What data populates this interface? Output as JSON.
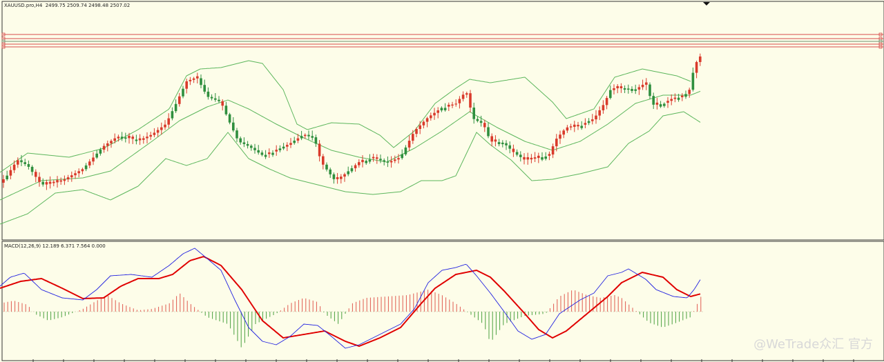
{
  "main_header": "XAUUSD.pro,H4  2499.75 2509.74 2498.48 2507.02",
  "macd_header": "MACD(12,26,9) 12.189 6.371 7.564 0.000",
  "watermark": "@WeTrade众汇 官方",
  "colors": {
    "background": "#fdfde9",
    "bull": "#d93a2b",
    "bear": "#2f8f3e",
    "bands": "#5cb65c",
    "hline_red": "#d84a4a",
    "hline_green": "#6f8f6f",
    "macd_line": "#2020e0",
    "signal_line": "#e00000",
    "hist_pos": "#e05a50",
    "hist_neg": "#4aa040"
  },
  "chart_data": [
    {
      "type": "candlestick",
      "symbol": "XAUUSD.pro",
      "timeframe": "H4",
      "ohlc_last": {
        "open": 2499.75,
        "high": 2509.74,
        "low": 2498.48,
        "close": 2507.02
      },
      "price_profile": [
        [
          0,
          265
        ],
        [
          10,
          255
        ],
        [
          25,
          232
        ],
        [
          40,
          240
        ],
        [
          60,
          268
        ],
        [
          90,
          262
        ],
        [
          120,
          245
        ],
        [
          150,
          212
        ],
        [
          170,
          198
        ],
        [
          200,
          204
        ],
        [
          220,
          195
        ],
        [
          240,
          180
        ],
        [
          255,
          150
        ],
        [
          270,
          118
        ],
        [
          285,
          112
        ],
        [
          300,
          140
        ],
        [
          320,
          148
        ],
        [
          330,
          172
        ],
        [
          345,
          205
        ],
        [
          360,
          212
        ],
        [
          380,
          225
        ],
        [
          400,
          218
        ],
        [
          420,
          208
        ],
        [
          440,
          195
        ],
        [
          455,
          200
        ],
        [
          465,
          235
        ],
        [
          485,
          262
        ],
        [
          500,
          252
        ],
        [
          520,
          235
        ],
        [
          540,
          228
        ],
        [
          560,
          236
        ],
        [
          580,
          228
        ],
        [
          600,
          190
        ],
        [
          620,
          170
        ],
        [
          640,
          156
        ],
        [
          660,
          150
        ],
        [
          675,
          132
        ],
        [
          685,
          172
        ],
        [
          700,
          180
        ],
        [
          710,
          205
        ],
        [
          730,
          208
        ],
        [
          745,
          222
        ],
        [
          760,
          232
        ],
        [
          780,
          228
        ],
        [
          795,
          225
        ],
        [
          805,
          202
        ],
        [
          820,
          185
        ],
        [
          840,
          182
        ],
        [
          860,
          172
        ],
        [
          875,
          150
        ],
        [
          885,
          128
        ],
        [
          900,
          128
        ],
        [
          920,
          130
        ],
        [
          935,
          120
        ],
        [
          945,
          152
        ],
        [
          960,
          150
        ],
        [
          975,
          142
        ],
        [
          990,
          140
        ],
        [
          1000,
          128
        ],
        [
          1005,
          95
        ],
        [
          1010,
          88
        ],
        [
          1015,
          80
        ]
      ],
      "bands_upper": [
        [
          0,
          250
        ],
        [
          40,
          222
        ],
        [
          100,
          228
        ],
        [
          150,
          215
        ],
        [
          200,
          188
        ],
        [
          245,
          158
        ],
        [
          270,
          110
        ],
        [
          290,
          100
        ],
        [
          320,
          98
        ],
        [
          360,
          88
        ],
        [
          380,
          92
        ],
        [
          410,
          130
        ],
        [
          430,
          180
        ],
        [
          445,
          188
        ],
        [
          480,
          178
        ],
        [
          520,
          180
        ],
        [
          550,
          196
        ],
        [
          570,
          214
        ],
        [
          600,
          190
        ],
        [
          630,
          150
        ],
        [
          660,
          128
        ],
        [
          680,
          115
        ],
        [
          710,
          120
        ],
        [
          760,
          112
        ],
        [
          800,
          148
        ],
        [
          820,
          172
        ],
        [
          860,
          158
        ],
        [
          890,
          112
        ],
        [
          930,
          100
        ],
        [
          980,
          110
        ],
        [
          1000,
          118
        ]
      ],
      "bands_middle": [
        [
          0,
          290
        ],
        [
          60,
          262
        ],
        [
          120,
          258
        ],
        [
          160,
          248
        ],
        [
          220,
          205
        ],
        [
          260,
          175
        ],
        [
          300,
          155
        ],
        [
          330,
          145
        ],
        [
          360,
          158
        ],
        [
          400,
          180
        ],
        [
          440,
          200
        ],
        [
          480,
          218
        ],
        [
          520,
          228
        ],
        [
          560,
          235
        ],
        [
          600,
          215
        ],
        [
          640,
          190
        ],
        [
          680,
          162
        ],
        [
          720,
          185
        ],
        [
          760,
          205
        ],
        [
          800,
          218
        ],
        [
          840,
          205
        ],
        [
          880,
          180
        ],
        [
          920,
          150
        ],
        [
          960,
          138
        ],
        [
          1000,
          138
        ],
        [
          1015,
          132
        ]
      ],
      "bands_lower": [
        [
          0,
          325
        ],
        [
          40,
          310
        ],
        [
          80,
          280
        ],
        [
          120,
          275
        ],
        [
          160,
          290
        ],
        [
          200,
          270
        ],
        [
          240,
          230
        ],
        [
          270,
          240
        ],
        [
          300,
          230
        ],
        [
          330,
          192
        ],
        [
          360,
          230
        ],
        [
          390,
          245
        ],
        [
          420,
          258
        ],
        [
          460,
          268
        ],
        [
          500,
          278
        ],
        [
          540,
          282
        ],
        [
          580,
          278
        ],
        [
          610,
          262
        ],
        [
          640,
          262
        ],
        [
          660,
          255
        ],
        [
          690,
          192
        ],
        [
          710,
          210
        ],
        [
          740,
          232
        ],
        [
          770,
          262
        ],
        [
          800,
          260
        ],
        [
          840,
          252
        ],
        [
          880,
          242
        ],
        [
          910,
          208
        ],
        [
          940,
          190
        ],
        [
          960,
          168
        ],
        [
          990,
          162
        ],
        [
          1015,
          178
        ]
      ],
      "horizontal_levels": [
        {
          "y_frac": 0.0,
          "color": "red"
        },
        {
          "y_frac": 0.12,
          "color": "red"
        },
        {
          "y_frac": 0.2,
          "color": "green"
        },
        {
          "y_frac": 0.28,
          "color": "red"
        },
        {
          "y_frac": 0.36,
          "color": "red"
        }
      ]
    },
    {
      "type": "line",
      "title": "MACD(12,26,9)",
      "values": {
        "macd": 12.189,
        "signal": 6.371,
        "histogram": 7.564,
        "level": 0.0
      },
      "macd_profile": [
        [
          0,
          415
        ],
        [
          15,
          402
        ],
        [
          35,
          396
        ],
        [
          60,
          420
        ],
        [
          90,
          432
        ],
        [
          120,
          435
        ],
        [
          140,
          420
        ],
        [
          160,
          400
        ],
        [
          190,
          398
        ],
        [
          220,
          402
        ],
        [
          245,
          385
        ],
        [
          265,
          368
        ],
        [
          282,
          360
        ],
        [
          300,
          375
        ],
        [
          320,
          392
        ],
        [
          340,
          435
        ],
        [
          360,
          475
        ],
        [
          380,
          495
        ],
        [
          400,
          500
        ],
        [
          420,
          488
        ],
        [
          440,
          470
        ],
        [
          460,
          472
        ],
        [
          480,
          488
        ],
        [
          500,
          505
        ],
        [
          520,
          500
        ],
        [
          550,
          485
        ],
        [
          580,
          470
        ],
        [
          600,
          448
        ],
        [
          620,
          410
        ],
        [
          640,
          392
        ],
        [
          660,
          388
        ],
        [
          675,
          383
        ],
        [
          690,
          400
        ],
        [
          710,
          425
        ],
        [
          730,
          452
        ],
        [
          750,
          480
        ],
        [
          770,
          492
        ],
        [
          790,
          485
        ],
        [
          810,
          455
        ],
        [
          840,
          435
        ],
        [
          860,
          425
        ],
        [
          880,
          400
        ],
        [
          900,
          395
        ],
        [
          910,
          390
        ],
        [
          935,
          405
        ],
        [
          950,
          420
        ],
        [
          975,
          430
        ],
        [
          995,
          432
        ],
        [
          1005,
          420
        ],
        [
          1015,
          404
        ]
      ],
      "signal_profile": [
        [
          0,
          418
        ],
        [
          30,
          408
        ],
        [
          60,
          404
        ],
        [
          90,
          418
        ],
        [
          120,
          433
        ],
        [
          150,
          432
        ],
        [
          175,
          415
        ],
        [
          200,
          404
        ],
        [
          230,
          404
        ],
        [
          250,
          398
        ],
        [
          275,
          378
        ],
        [
          295,
          372
        ],
        [
          320,
          385
        ],
        [
          350,
          420
        ],
        [
          380,
          465
        ],
        [
          410,
          490
        ],
        [
          440,
          485
        ],
        [
          470,
          480
        ],
        [
          500,
          495
        ],
        [
          520,
          502
        ],
        [
          550,
          490
        ],
        [
          580,
          475
        ],
        [
          610,
          440
        ],
        [
          630,
          418
        ],
        [
          660,
          398
        ],
        [
          690,
          392
        ],
        [
          710,
          402
        ],
        [
          730,
          422
        ],
        [
          760,
          455
        ],
        [
          780,
          478
        ],
        [
          800,
          490
        ],
        [
          820,
          480
        ],
        [
          850,
          455
        ],
        [
          880,
          430
        ],
        [
          900,
          410
        ],
        [
          930,
          395
        ],
        [
          960,
          402
        ],
        [
          980,
          420
        ],
        [
          1000,
          430
        ],
        [
          1015,
          426
        ]
      ],
      "histogram_profile": [
        [
          0,
          440
        ],
        [
          20,
          436
        ],
        [
          40,
          442
        ],
        [
          50,
          455
        ],
        [
          70,
          465
        ],
        [
          90,
          460
        ],
        [
          120,
          448
        ],
        [
          140,
          436
        ],
        [
          155,
          428
        ],
        [
          175,
          440
        ],
        [
          200,
          450
        ],
        [
          220,
          448
        ],
        [
          245,
          440
        ],
        [
          260,
          425
        ],
        [
          275,
          440
        ],
        [
          300,
          460
        ],
        [
          330,
          470
        ],
        [
          350,
          505
        ],
        [
          370,
          470
        ],
        [
          390,
          460
        ],
        [
          400,
          455
        ],
        [
          420,
          440
        ],
        [
          440,
          432
        ],
        [
          460,
          438
        ],
        [
          470,
          455
        ],
        [
          490,
          470
        ],
        [
          510,
          440
        ],
        [
          530,
          432
        ],
        [
          560,
          430
        ],
        [
          590,
          428
        ],
        [
          620,
          420
        ],
        [
          640,
          428
        ],
        [
          660,
          440
        ],
        [
          680,
          455
        ],
        [
          700,
          470
        ],
        [
          710,
          497
        ],
        [
          730,
          470
        ],
        [
          760,
          458
        ],
        [
          790,
          455
        ],
        [
          810,
          430
        ],
        [
          830,
          420
        ],
        [
          850,
          428
        ],
        [
          870,
          432
        ],
        [
          890,
          428
        ],
        [
          900,
          432
        ],
        [
          920,
          450
        ],
        [
          940,
          468
        ],
        [
          960,
          475
        ],
        [
          980,
          468
        ],
        [
          1000,
          460
        ],
        [
          1015,
          430
        ]
      ]
    }
  ]
}
